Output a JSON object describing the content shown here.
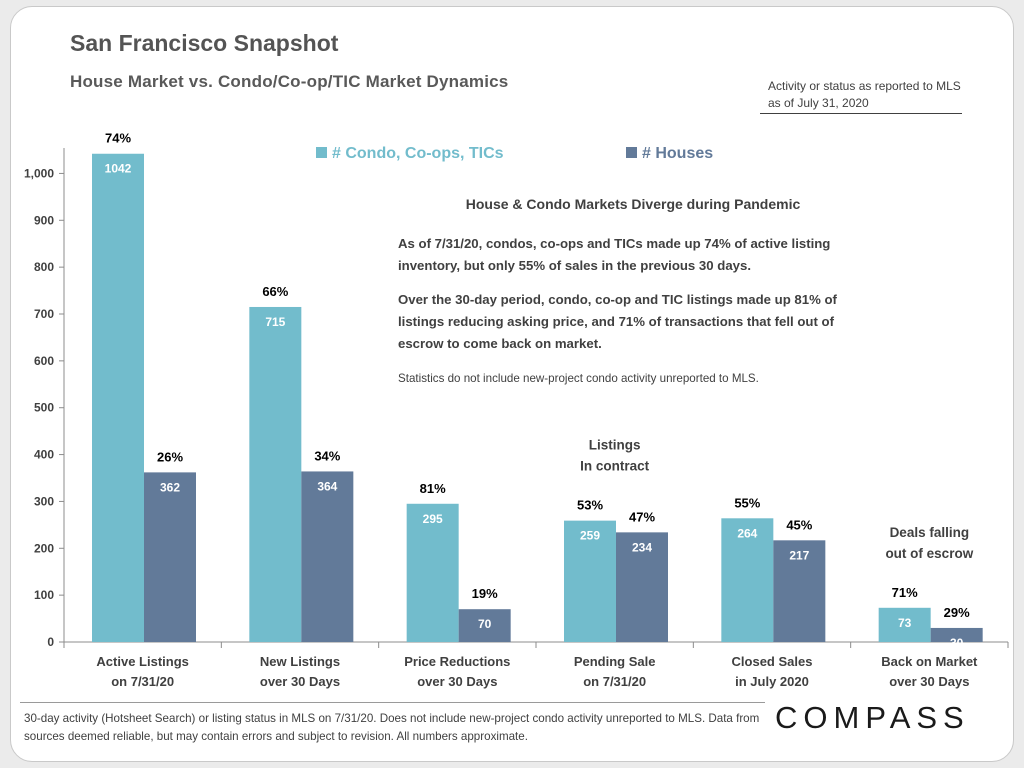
{
  "header": {
    "title": "San Francisco Snapshot",
    "subtitle": "House Market vs. Condo/Co-op/TIC  Market Dynamics",
    "asof": "Activity or status as reported to MLS as of July 31, 2020"
  },
  "callout": {
    "heading": "House & Condo Markets Diverge during Pandemic",
    "p1": "As of 7/31/20, condos, co-ops and TICs made up 74% of active listing inventory, but only 55% of sales in the previous 30 days.",
    "p2": "Over the 30-day period, condo, co-op and TIC listings made up 81% of listings reducing asking price, and 71% of transactions that fell out of escrow to come back on market.",
    "note": "Statistics do not include new-project condo activity unreported to MLS."
  },
  "footer": {
    "note": "30-day activity (Hotsheet Search) or listing status in MLS on 7/31/20. Does not include new-project condo activity unreported to MLS. Data from sources deemed reliable, but may contain errors and subject to revision. All numbers approximate.",
    "logo": "COMPASS"
  },
  "chart_data": {
    "type": "bar",
    "categories": [
      [
        "Active Listings",
        "on 7/31/20"
      ],
      [
        "New Listings",
        "over 30 Days"
      ],
      [
        "Price Reductions",
        "over 30 Days"
      ],
      [
        "Pending Sale",
        "on 7/31/20"
      ],
      [
        "Closed Sales",
        "in July 2020"
      ],
      [
        "Back on Market",
        "over 30 Days"
      ]
    ],
    "series": [
      {
        "name": "# Condo, Co-ops, TICs",
        "color": "#72bccc",
        "values": [
          1042,
          715,
          295,
          259,
          264,
          73
        ],
        "percent_labels": [
          "74%",
          "66%",
          "81%",
          "53%",
          "55%",
          "71%"
        ]
      },
      {
        "name": "# Houses",
        "color": "#627a99",
        "values": [
          362,
          364,
          70,
          234,
          217,
          30
        ],
        "percent_labels": [
          "26%",
          "34%",
          "19%",
          "47%",
          "45%",
          "29%"
        ]
      }
    ],
    "ylim": [
      0,
      1050
    ],
    "yticks": [
      0,
      100,
      200,
      300,
      400,
      500,
      600,
      700,
      800,
      900,
      1000
    ],
    "ytick_labels": [
      "0",
      "100",
      "200",
      "300",
      "400",
      "500",
      "600",
      "700",
      "800",
      "900",
      "1,000"
    ],
    "annotations": [
      {
        "category_index": 3,
        "lines": [
          "Listings",
          "In contract"
        ]
      },
      {
        "category_index": 5,
        "lines": [
          "Deals falling",
          "out of escrow"
        ]
      }
    ],
    "legend_position": "top-center",
    "grid": false
  }
}
